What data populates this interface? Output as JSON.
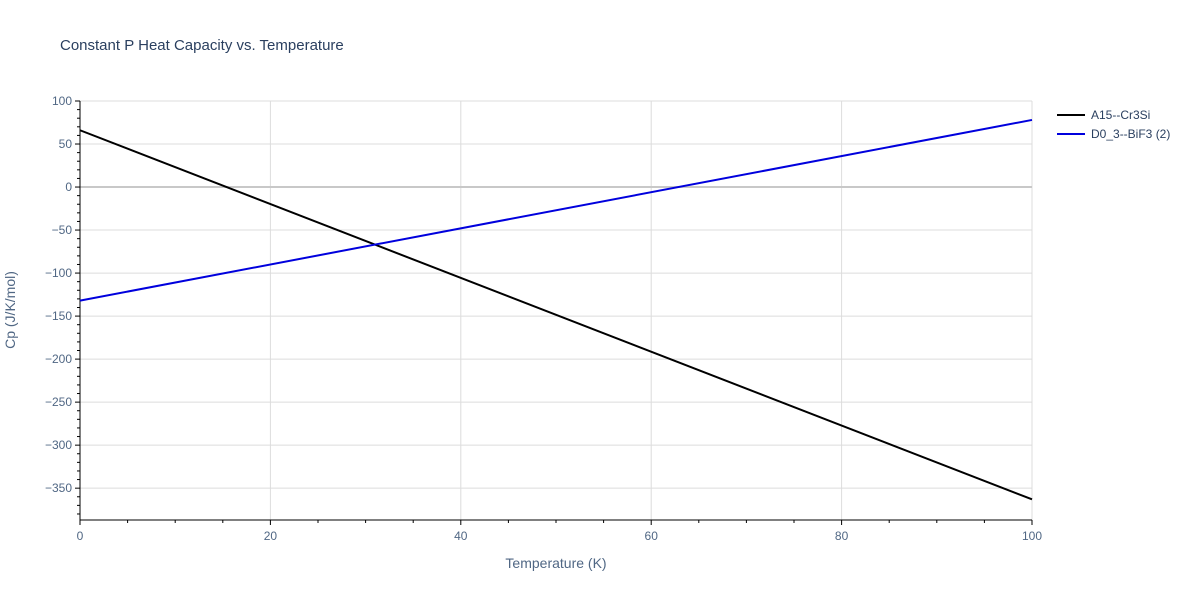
{
  "chart_data": {
    "type": "line",
    "title": "Constant P Heat Capacity vs. Temperature",
    "xlabel": "Temperature (K)",
    "ylabel": "Cp (J/K/mol)",
    "xlim": [
      0,
      100
    ],
    "ylim": [
      -387,
      100
    ],
    "x_ticks": [
      0,
      20,
      40,
      60,
      80,
      100
    ],
    "y_ticks": [
      100,
      50,
      0,
      -50,
      -100,
      -150,
      -200,
      -250,
      -300,
      -350
    ],
    "x_tick_labels": [
      "0",
      "20",
      "40",
      "60",
      "80",
      "100"
    ],
    "y_tick_labels": [
      "100",
      "50",
      "0",
      "−50",
      "−100",
      "−150",
      "−200",
      "−250",
      "−300",
      "−350"
    ],
    "grid": true,
    "legend_position": "top-right",
    "series": [
      {
        "name": "A15--Cr3Si",
        "color": "#000000",
        "x": [
          0,
          100
        ],
        "y": [
          66,
          -363
        ]
      },
      {
        "name": "D0_3--BiF3 (2)",
        "color": "#0000dd",
        "x": [
          0,
          100
        ],
        "y": [
          -132,
          78
        ]
      }
    ]
  }
}
